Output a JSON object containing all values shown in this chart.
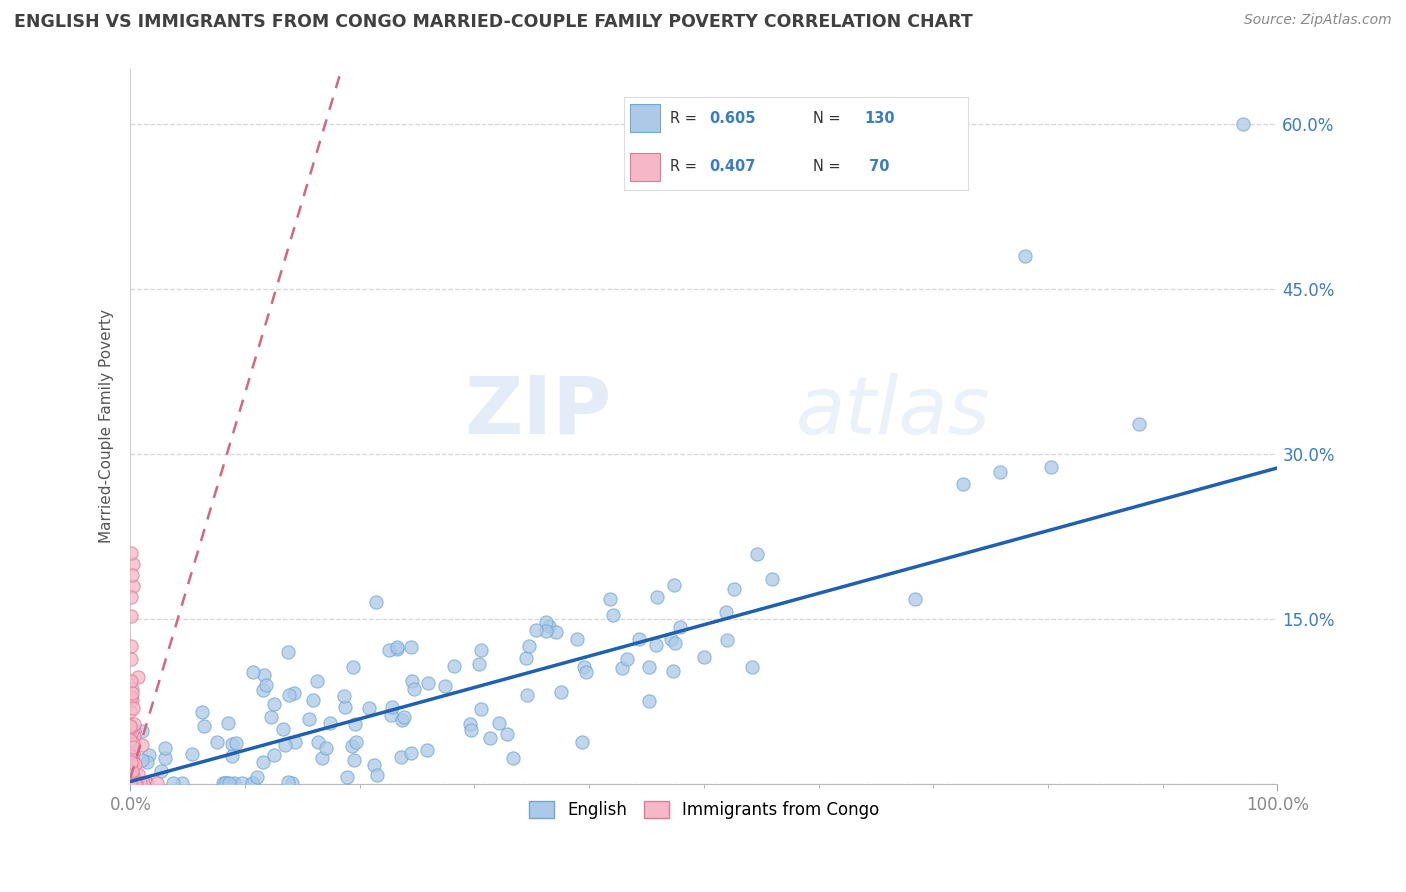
{
  "title": "ENGLISH VS IMMIGRANTS FROM CONGO MARRIED-COUPLE FAMILY POVERTY CORRELATION CHART",
  "source": "Source: ZipAtlas.com",
  "ylabel": "Married-Couple Family Poverty",
  "xlim": [
    0,
    1.0
  ],
  "ylim": [
    0,
    0.65
  ],
  "xtick_vals": [
    0,
    1.0
  ],
  "xtick_labels": [
    "0.0%",
    "100.0%"
  ],
  "ytick_vals": [
    0.0,
    0.15,
    0.3,
    0.45,
    0.6
  ],
  "ytick_labels": [
    "",
    "15.0%",
    "30.0%",
    "45.0%",
    "60.0%"
  ],
  "english_fill": "#adc9e8",
  "english_edge": "#6fa8d0",
  "congo_fill": "#f5b8c8",
  "congo_edge": "#e07898",
  "trend_english_color": "#2060b0",
  "trend_congo_color": "#d06880",
  "R_english": 0.605,
  "N_english": 130,
  "R_congo": 0.407,
  "N_congo": 70,
  "watermark": "ZIPAtlas",
  "background_color": "#ffffff",
  "grid_color": "#cccccc",
  "legend_label_english": "English",
  "legend_label_congo": "Immigrants from Congo",
  "title_color": "#404040",
  "source_color": "#888888",
  "axis_label_color": "#3a7cc1",
  "tick_color": "#888888"
}
